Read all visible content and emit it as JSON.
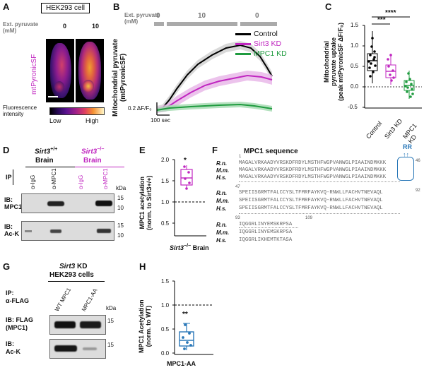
{
  "colors": {
    "control": "#000000",
    "sirt3": "#c026c0",
    "mpc1": "#1f9b3f",
    "box_blue": "#2a78b8",
    "gray_bar": "#aaaaaa"
  },
  "panelA": {
    "label": "A",
    "cell": "HEK293 cell",
    "row_label": "Ext. pyruvate\n(mM)",
    "conc1": "0",
    "conc2": "10",
    "sensor": "mtPyronicSF",
    "scale_title": "Fluorescence\nintensity",
    "scale_low": "Low",
    "scale_high": "High"
  },
  "panelB": {
    "label": "B",
    "row_label": "Ext. pyruvate\n(mM)",
    "seg_labels": [
      "0",
      "10",
      "0"
    ],
    "ylabel": "Mitochondrial pyruvate\n(mtPyronicSF)",
    "scale_y": "0.2 ΔF/F₀",
    "scale_x": "100 sec",
    "legend": [
      "Control",
      "Sirt3 KD",
      "MPC1 KD"
    ]
  },
  "panelC": {
    "label": "C",
    "ylabel": "Mitochondrial\npyruvate uptake\n(peak mtPyronicSF ΔF/F₀)",
    "yticks": [
      "1.5",
      "1.0",
      "0.5",
      "0.0",
      "-0.5"
    ],
    "categories": [
      "Control",
      "Sirt3 KD",
      "MPC1 KD"
    ],
    "sig1": "***",
    "sig2": "****"
  },
  "panelD": {
    "label": "D",
    "geno1": "Sirt3",
    "geno1_sup": "+/+",
    "geno2": "Sirt3",
    "geno2_sup": "−/−",
    "tissue": "Brain",
    "ip": "IP",
    "lanes": [
      "α-IgG",
      "α-MPC1",
      "α-IgG",
      "α-MPC1"
    ],
    "kda": "kDa",
    "ib1_top": "IB:",
    "ib1_bot": "MPC1",
    "ib2_top": "IB:",
    "ib2_bot": "Ac-K",
    "m1": [
      "15",
      "10"
    ],
    "m2": [
      "15",
      "10"
    ]
  },
  "panelE": {
    "label": "E",
    "ylabel": "MPC1 acetylation\n(norm. to Sirt3+/+)",
    "yticks": [
      "2.0",
      "1.5",
      "1.0",
      "0.5"
    ],
    "sig": "*",
    "xlabel_ital": "Sirt3",
    "xlabel_sup": "−/−",
    "xlabel_rest": " Brain"
  },
  "panelF": {
    "label": "F",
    "title": "MPC1 sequence",
    "rr": "RR",
    "species": [
      "R.n.",
      "M.m.",
      "H.s."
    ],
    "blocks": [
      {
        "start": "1",
        "end": "46",
        "seqs": [
          "MAGALVRKAADYVRSKDFRDYLMSTHFWGPVANWGLPIAAINDMKKK",
          "MAGALVRKAADYVRSKDFRDYLMSTHFWGPVANWGLPIAAINDMKKK",
          "MAGALVRKAADYVRSKDFRDYLMSTHFWGPVANWGLPIAAINDMKKK"
        ]
      },
      {
        "start": "47",
        "end": "92",
        "seqs": [
          "SPEIISGRMTFALCCYSLTFMRFAYKVQ-RNWLLFACHVTNEVAQL",
          "SPEIISGRMTFALCCYSLTFMRFAYKVQ-RNWLLFACHVTNEVAQL",
          "SPEIISGRMTFALCCYSLTFMRFAYKVQ-RNWLLFACHVTNEVAQL"
        ]
      },
      {
        "start": "93",
        "end": "109",
        "seqs": [
          "IQGGRLINYEMSKRPSA",
          "IQGGRLINYEMSKRPSA",
          "IQGGRLIKHEMTKTASA"
        ]
      }
    ]
  },
  "panelG": {
    "label": "G",
    "title_ital": "Sirt3",
    "title_rest": " KD",
    "title2": "HEK293 cells",
    "ip1": "IP:",
    "ip2": "α-FLAG",
    "lanes": [
      "WT MPC1",
      "MPC1-AA"
    ],
    "kda": "kDa",
    "ib1_top": "IB: FLAG",
    "ib1_bot": "(MPC1)",
    "ib2_top": "IB:",
    "ib2_bot": "Ac-K",
    "m1": "15",
    "m2": "15"
  },
  "panelH": {
    "label": "H",
    "ylabel": "MPC1 Acetylation\n(norm. to WT)",
    "yticks": [
      "1.5",
      "1.0",
      "0.5",
      "0.0"
    ],
    "sig": "**",
    "xlabel": "MPC1-AA"
  }
}
